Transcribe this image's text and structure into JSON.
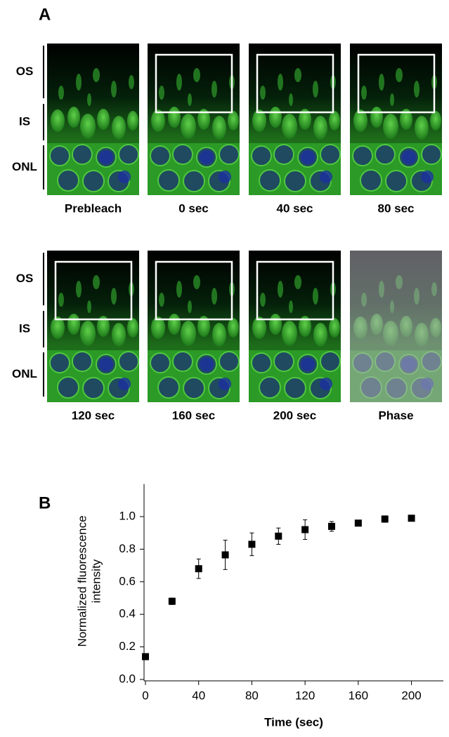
{
  "panel_a": {
    "label": "A",
    "rows": [
      {
        "layer_labels": [
          "OS",
          "IS",
          "ONL"
        ],
        "captions": [
          "Prebleach",
          "0 sec",
          "40 sec",
          "80 sec"
        ]
      },
      {
        "layer_labels": [
          "OS",
          "IS",
          "ONL"
        ],
        "captions": [
          "120 sec",
          "160 sec",
          "200 sec",
          "Phase"
        ]
      }
    ]
  },
  "panel_b_label": "B",
  "chart_data": {
    "type": "scatter",
    "y_label": [
      "Normalized fluorescence",
      "intensity"
    ],
    "x_label": "Time (sec)",
    "x": [
      0,
      20,
      40,
      60,
      80,
      100,
      120,
      140,
      160,
      180,
      200
    ],
    "values": [
      0.14,
      0.48,
      0.68,
      0.765,
      0.83,
      0.88,
      0.92,
      0.94,
      0.96,
      0.985,
      0.99
    ],
    "errors": [
      0.01,
      0.02,
      0.06,
      0.09,
      0.07,
      0.05,
      0.06,
      0.03,
      0.01,
      0.02,
      0.01
    ],
    "color": "#000000",
    "xlim": [
      0,
      224
    ],
    "ylim": [
      0,
      1.2
    ],
    "xticks": [
      0,
      40,
      80,
      120,
      160,
      200
    ],
    "yticks": [
      {
        "value": 0,
        "label": "0.0"
      },
      0.2,
      0.4,
      0.6,
      0.8,
      {
        "value": 1,
        "label": "1.0"
      }
    ]
  }
}
